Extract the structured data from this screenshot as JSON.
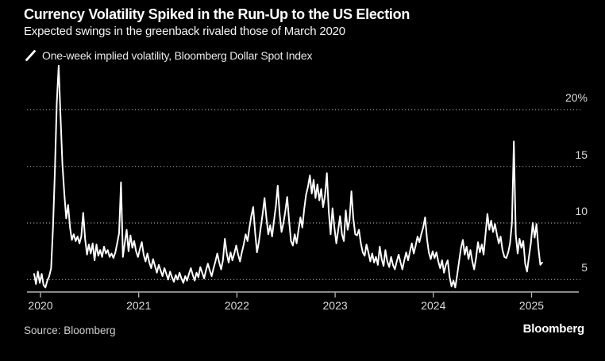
{
  "page": {
    "background": "#000000"
  },
  "chart_data": {
    "type": "line",
    "title": "Currency Volatility Spiked in the Run-Up to the US Election",
    "subtitle": "Expected swings in the greenback rivaled those of March 2020",
    "legend": "One-week implied volatility, Bloomberg Dollar Spot Index",
    "legend_position": "top-left",
    "line_color": "#ffffff",
    "grid": "horizontal-dotted",
    "x_ticks": [
      "2020",
      "2021",
      "2022",
      "2023",
      "2024",
      "2025"
    ],
    "y_ticks": [
      {
        "label": "20%",
        "value": 20
      },
      {
        "label": "15",
        "value": 15
      },
      {
        "label": "10",
        "value": 10
      },
      {
        "label": "5",
        "value": 5
      }
    ],
    "ylim": [
      3.8,
      24.2
    ],
    "xlim_years": [
      2019.86,
      2025.48
    ],
    "x_start_year": 2019.935,
    "x_step_years": 0.019231,
    "values": [
      5.5,
      4.6,
      5.7,
      4.7,
      5.5,
      4.5,
      4.3,
      4.9,
      5.3,
      6.0,
      9.5,
      14.5,
      20.6,
      23.9,
      19.3,
      15.2,
      12.6,
      10.4,
      11.6,
      9.6,
      8.5,
      9.0,
      8.4,
      8.8,
      8.2,
      8.8,
      10.9,
      8.6,
      7.2,
      8.1,
      7.3,
      8.2,
      6.7,
      8.1,
      7.1,
      7.6,
      7.0,
      7.9,
      7.3,
      7.6,
      7.0,
      7.3,
      6.9,
      7.4,
      8.2,
      9.1,
      13.6,
      7.0,
      8.2,
      9.4,
      7.5,
      8.9,
      7.8,
      8.4,
      7.5,
      7.0,
      7.7,
      8.3,
      7.2,
      6.6,
      7.3,
      6.5,
      6.0,
      6.8,
      6.2,
      5.6,
      6.3,
      5.8,
      5.3,
      6.0,
      5.5,
      5.0,
      5.7,
      5.2,
      4.8,
      5.4,
      5.0,
      5.6,
      5.1,
      4.7,
      5.3,
      4.9,
      5.5,
      6.0,
      5.4,
      4.9,
      5.6,
      5.2,
      6.1,
      5.6,
      5.1,
      5.8,
      6.4,
      5.8,
      5.3,
      6.0,
      6.6,
      7.3,
      6.5,
      5.9,
      6.7,
      8.6,
      7.3,
      6.5,
      7.4,
      6.7,
      7.3,
      8.0,
      7.2,
      6.6,
      7.4,
      8.1,
      9.0,
      8.4,
      9.6,
      10.6,
      11.4,
      9.2,
      7.4,
      8.3,
      9.6,
      10.8,
      12.2,
      10.4,
      9.0,
      9.8,
      8.8,
      10.2,
      11.5,
      13.3,
      10.8,
      9.2,
      10.0,
      11.0,
      12.3,
      10.2,
      8.4,
      8.0,
      9.0,
      8.2,
      9.4,
      10.5,
      9.6,
      11.2,
      12.5,
      13.2,
      14.2,
      12.6,
      13.8,
      12.2,
      13.4,
      12.0,
      13.0,
      11.4,
      12.4,
      14.4,
      11.0,
      9.0,
      11.3,
      9.6,
      8.2,
      9.4,
      10.6,
      9.0,
      8.4,
      11.1,
      9.4,
      10.2,
      12.8,
      10.4,
      9.0,
      8.9,
      9.4,
      8.2,
      7.4,
      7.1,
      8.1,
      7.4,
      6.6,
      7.3,
      6.5,
      7.0,
      6.3,
      7.9,
      6.8,
      6.2,
      7.6,
      6.6,
      6.1,
      7.0,
      6.3,
      5.9,
      6.6,
      7.2,
      6.5,
      5.9,
      6.7,
      7.4,
      6.7,
      7.5,
      8.2,
      7.3,
      8.0,
      8.8,
      8.3,
      9.0,
      9.6,
      10.5,
      8.6,
      7.4,
      6.8,
      7.5,
      6.9,
      7.4,
      6.6,
      6.0,
      6.7,
      5.6,
      6.3,
      6.7,
      5.2,
      4.4,
      4.9,
      4.3,
      5.4,
      6.6,
      7.8,
      8.5,
      7.2,
      7.9,
      6.8,
      7.6,
      6.6,
      5.9,
      6.9,
      8.3,
      7.4,
      8.1,
      7.2,
      9.0,
      10.8,
      9.4,
      10.2,
      9.2,
      9.9,
      9.0,
      8.2,
      8.8,
      7.6,
      7.0,
      6.9,
      7.4,
      8.2,
      10.0,
      17.2,
      9.0,
      7.3,
      8.6,
      7.8,
      8.4,
      6.4,
      5.7,
      7.0,
      8.2,
      10.0,
      8.7,
      9.9,
      7.8,
      6.3,
      6.5
    ]
  },
  "footer": {
    "source": "Source: Bloomberg",
    "brand": "Bloomberg"
  }
}
